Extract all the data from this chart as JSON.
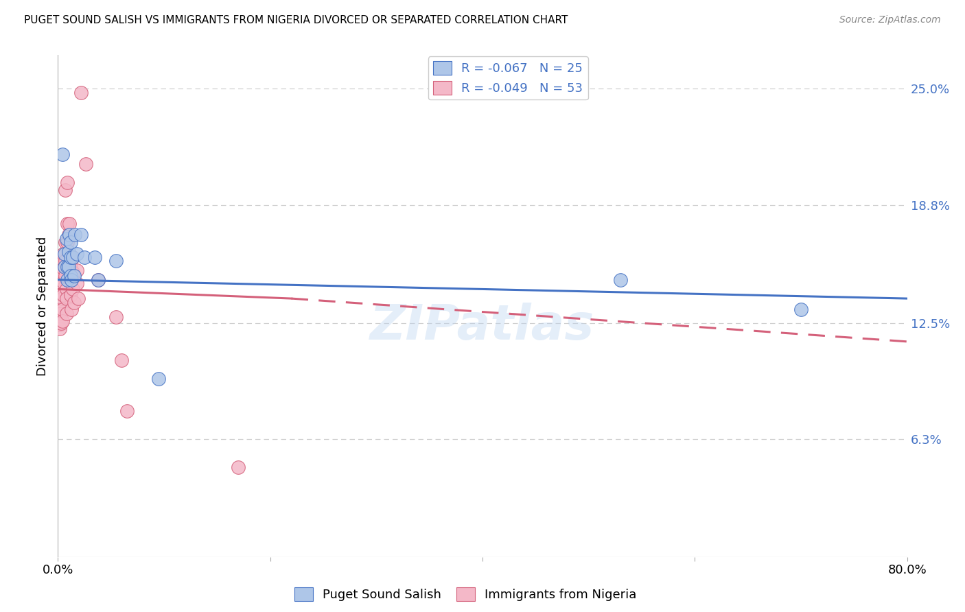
{
  "title": "PUGET SOUND SALISH VS IMMIGRANTS FROM NIGERIA DIVORCED OR SEPARATED CORRELATION CHART",
  "source": "Source: ZipAtlas.com",
  "ylabel": "Divorced or Separated",
  "xlim": [
    0.0,
    0.8
  ],
  "ylim": [
    0.0,
    0.268
  ],
  "ytick_vals": [
    0.0,
    0.063,
    0.125,
    0.188,
    0.25
  ],
  "ytick_labels": [
    "",
    "6.3%",
    "12.5%",
    "18.8%",
    "25.0%"
  ],
  "xtick_vals": [
    0.0,
    0.2,
    0.4,
    0.6,
    0.8
  ],
  "xtick_labels": [
    "0.0%",
    "",
    "",
    "",
    "80.0%"
  ],
  "legend_entries": [
    "R = -0.067   N = 25",
    "R = -0.049   N = 53"
  ],
  "legend_bottom": [
    "Puget Sound Salish",
    "Immigrants from Nigeria"
  ],
  "blue_color": "#4472c4",
  "blue_fill": "#aec6e8",
  "pink_color": "#d4607a",
  "pink_fill": "#f4b8c8",
  "watermark": "ZIPatlas",
  "background_color": "#ffffff",
  "grid_color": "#d0d0d0",
  "blue_scatter": [
    [
      0.004,
      0.215
    ],
    [
      0.006,
      0.162
    ],
    [
      0.006,
      0.155
    ],
    [
      0.008,
      0.17
    ],
    [
      0.009,
      0.155
    ],
    [
      0.009,
      0.148
    ],
    [
      0.01,
      0.163
    ],
    [
      0.01,
      0.155
    ],
    [
      0.011,
      0.172
    ],
    [
      0.012,
      0.168
    ],
    [
      0.012,
      0.16
    ],
    [
      0.012,
      0.15
    ],
    [
      0.013,
      0.148
    ],
    [
      0.014,
      0.16
    ],
    [
      0.015,
      0.15
    ],
    [
      0.016,
      0.172
    ],
    [
      0.018,
      0.162
    ],
    [
      0.022,
      0.172
    ],
    [
      0.025,
      0.16
    ],
    [
      0.035,
      0.16
    ],
    [
      0.038,
      0.148
    ],
    [
      0.055,
      0.158
    ],
    [
      0.095,
      0.095
    ],
    [
      0.53,
      0.148
    ],
    [
      0.7,
      0.132
    ]
  ],
  "pink_scatter": [
    [
      0.002,
      0.14
    ],
    [
      0.002,
      0.136
    ],
    [
      0.002,
      0.132
    ],
    [
      0.002,
      0.13
    ],
    [
      0.002,
      0.127
    ],
    [
      0.002,
      0.124
    ],
    [
      0.002,
      0.122
    ],
    [
      0.003,
      0.147
    ],
    [
      0.003,
      0.142
    ],
    [
      0.003,
      0.138
    ],
    [
      0.003,
      0.134
    ],
    [
      0.003,
      0.13
    ],
    [
      0.003,
      0.125
    ],
    [
      0.004,
      0.158
    ],
    [
      0.004,
      0.15
    ],
    [
      0.004,
      0.143
    ],
    [
      0.004,
      0.138
    ],
    [
      0.004,
      0.132
    ],
    [
      0.004,
      0.126
    ],
    [
      0.005,
      0.162
    ],
    [
      0.005,
      0.154
    ],
    [
      0.005,
      0.147
    ],
    [
      0.005,
      0.14
    ],
    [
      0.007,
      0.196
    ],
    [
      0.007,
      0.168
    ],
    [
      0.007,
      0.158
    ],
    [
      0.007,
      0.15
    ],
    [
      0.008,
      0.143
    ],
    [
      0.008,
      0.138
    ],
    [
      0.008,
      0.13
    ],
    [
      0.009,
      0.2
    ],
    [
      0.009,
      0.178
    ],
    [
      0.009,
      0.168
    ],
    [
      0.01,
      0.172
    ],
    [
      0.011,
      0.178
    ],
    [
      0.012,
      0.155
    ],
    [
      0.012,
      0.148
    ],
    [
      0.012,
      0.14
    ],
    [
      0.013,
      0.132
    ],
    [
      0.014,
      0.16
    ],
    [
      0.014,
      0.152
    ],
    [
      0.014,
      0.143
    ],
    [
      0.015,
      0.136
    ],
    [
      0.018,
      0.153
    ],
    [
      0.018,
      0.146
    ],
    [
      0.019,
      0.138
    ],
    [
      0.022,
      0.248
    ],
    [
      0.026,
      0.21
    ],
    [
      0.038,
      0.148
    ],
    [
      0.055,
      0.128
    ],
    [
      0.06,
      0.105
    ],
    [
      0.065,
      0.078
    ],
    [
      0.17,
      0.048
    ]
  ],
  "blue_line": [
    [
      0.0,
      0.148
    ],
    [
      0.8,
      0.138
    ]
  ],
  "pink_line_solid_end": 0.22,
  "pink_line_start_y": 0.143,
  "pink_line_end_y": 0.115,
  "pink_line_solid_end_y": 0.138
}
